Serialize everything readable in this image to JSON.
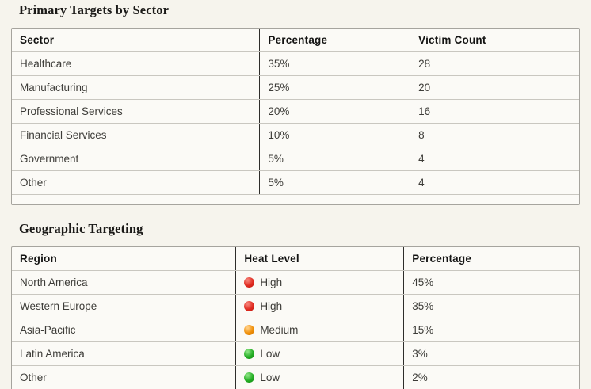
{
  "theme": {
    "page_background": "#f6f4ed",
    "table_background": "#fbfaf6",
    "outer_border": "#a6a49e",
    "row_line": "#c9c7c0",
    "column_line": "#2e2d2a",
    "heat_red": "#e02b20",
    "heat_amber": "#ef8e07",
    "heat_green": "#23ad23"
  },
  "sections": [
    {
      "title": "Primary Targets by Sector",
      "columns": [
        "Sector",
        "Percentage",
        "Victim Count"
      ],
      "rows": [
        {
          "cells": [
            "Healthcare",
            "35%",
            "28"
          ]
        },
        {
          "cells": [
            "Manufacturing",
            "25%",
            "20"
          ]
        },
        {
          "cells": [
            "Professional Services",
            "20%",
            "16"
          ]
        },
        {
          "cells": [
            "Financial Services",
            "10%",
            "8"
          ]
        },
        {
          "cells": [
            "Government",
            "5%",
            "4"
          ]
        },
        {
          "cells": [
            "Other",
            "5%",
            "4"
          ]
        }
      ]
    },
    {
      "title": "Geographic Targeting",
      "columns": [
        "Region",
        "Heat Level",
        "Percentage"
      ],
      "rows": [
        {
          "region": "North America",
          "heat_label": "High",
          "heat_color": "red",
          "percentage": "45%"
        },
        {
          "region": "Western Europe",
          "heat_label": "High",
          "heat_color": "red",
          "percentage": "35%"
        },
        {
          "region": "Asia-Pacific",
          "heat_label": "Medium",
          "heat_color": "amber",
          "percentage": "15%"
        },
        {
          "region": "Latin America",
          "heat_label": "Low",
          "heat_color": "green",
          "percentage": "3%"
        },
        {
          "region": "Other",
          "heat_label": "Low",
          "heat_color": "green",
          "percentage": "2%"
        }
      ]
    }
  ]
}
